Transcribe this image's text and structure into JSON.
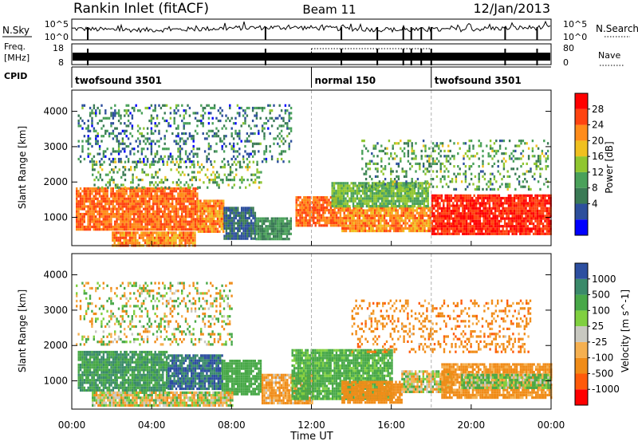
{
  "header": {
    "station": "Rankin Inlet (fitACF)",
    "beam": "Beam 11",
    "date": "12/Jan/2013"
  },
  "summary": {
    "nsky_label": "N.Sky",
    "nsearch_label": "N.Search",
    "freq_label_1": "Freq.",
    "freq_label_2": "[MHz]",
    "nave_label": "Nave",
    "cpid_label": "CPID",
    "noise_ticks_left": [
      "10^5",
      "10^0"
    ],
    "noise_ticks_right": [
      "10^5",
      "10^0"
    ],
    "freq_ticks": [
      "18",
      "8"
    ],
    "nave_ticks": [
      "80",
      "0"
    ],
    "cpid_segments": [
      {
        "label": "twofsound 3501",
        "start_hour": 0,
        "end_hour": 12
      },
      {
        "label": "normal 150",
        "start_hour": 12,
        "end_hour": 18
      },
      {
        "label": "twofsound 3501",
        "start_hour": 18,
        "end_hour": 24
      }
    ]
  },
  "chart_data": [
    {
      "type": "heatmap",
      "quantity": "Power",
      "ylabel": "Slant Range [km]",
      "colorbar_label": "Power [dB]",
      "xlim": [
        0,
        24
      ],
      "ylim": [
        200,
        4600
      ],
      "yticks": [
        1000,
        2000,
        3000,
        4000
      ],
      "colorbar_ticks": [
        "28",
        "24",
        "20",
        "16",
        "12",
        "8",
        "4"
      ],
      "colorscale": [
        "#0000ff",
        "#2d4f9c",
        "#3a7a55",
        "#4aa15a",
        "#90c630",
        "#f0c020",
        "#ff8c1a",
        "#ff4410",
        "#ff0000"
      ],
      "regions": [
        {
          "x_start": 0.2,
          "x_end": 6.3,
          "range_start": 650,
          "range_end": 1850,
          "value": 26
        },
        {
          "x_start": 2.0,
          "x_end": 6.2,
          "range_start": 200,
          "range_end": 600,
          "value": 24
        },
        {
          "x_start": 6.3,
          "x_end": 7.6,
          "range_start": 600,
          "range_end": 1500,
          "value": 24
        },
        {
          "x_start": 7.6,
          "x_end": 9.2,
          "range_start": 400,
          "range_end": 1300,
          "value": 6
        },
        {
          "x_start": 9.2,
          "x_end": 11.0,
          "range_start": 400,
          "range_end": 1000,
          "value": 10
        },
        {
          "x_start": 11.2,
          "x_end": 13.5,
          "range_start": 800,
          "range_end": 1600,
          "value": 26
        },
        {
          "x_start": 13.5,
          "x_end": 18.0,
          "range_start": 600,
          "range_end": 1300,
          "value": 24
        },
        {
          "x_start": 13.0,
          "x_end": 17.8,
          "range_start": 1300,
          "range_end": 2000,
          "value": 14
        },
        {
          "x_start": 18.0,
          "x_end": 24.0,
          "range_start": 550,
          "range_end": 1650,
          "value": 30
        },
        {
          "x_start": 1.0,
          "x_end": 9.5,
          "range_start": 1850,
          "range_end": 2600,
          "value": 13
        },
        {
          "x_start": 14.5,
          "x_end": 23.8,
          "range_start": 1800,
          "range_end": 3200,
          "value": 12
        },
        {
          "x_start": 0.3,
          "x_end": 11.0,
          "range_start": 2600,
          "range_end": 4200,
          "value": 8
        }
      ]
    },
    {
      "type": "heatmap",
      "quantity": "Velocity",
      "ylabel": "Slant Range [km]",
      "colorbar_label": "Velocity [m s^-1]",
      "xlabel": "Time UT",
      "xlim": [
        0,
        24
      ],
      "ylim": [
        200,
        4600
      ],
      "yticks": [
        1000,
        2000,
        3000,
        4000
      ],
      "xtick_labels": [
        "00:00",
        "04:00",
        "08:00",
        "12:00",
        "16:00",
        "20:00",
        "00:00"
      ],
      "xtick_hours": [
        0,
        4,
        8,
        12,
        16,
        20,
        24
      ],
      "colorbar_ticks": [
        "1000",
        "500",
        "100",
        "25",
        "-25",
        "-100",
        "-500",
        "-1000"
      ],
      "colorscale": [
        "#ff0000",
        "#ff5a0a",
        "#f08c18",
        "#f5b050",
        "#c8c8c0",
        "#80d040",
        "#48a848",
        "#3a8a6a",
        "#2d4fa0"
      ],
      "regions": [
        {
          "x_start": 0.3,
          "x_end": 4.8,
          "range_start": 750,
          "range_end": 1850,
          "value": 500
        },
        {
          "x_start": 4.8,
          "x_end": 7.5,
          "range_start": 800,
          "range_end": 1750,
          "value": 1000
        },
        {
          "x_start": 7.5,
          "x_end": 9.5,
          "range_start": 600,
          "range_end": 1600,
          "value": 300
        },
        {
          "x_start": 1.0,
          "x_end": 8.0,
          "range_start": 300,
          "range_end": 700,
          "value": 0
        },
        {
          "x_start": 9.5,
          "x_end": 12.0,
          "range_start": 400,
          "range_end": 1200,
          "value": -150
        },
        {
          "x_start": 11.0,
          "x_end": 16.0,
          "range_start": 500,
          "range_end": 1900,
          "value": 200
        },
        {
          "x_start": 13.5,
          "x_end": 16.5,
          "range_start": 400,
          "range_end": 1000,
          "value": -300
        },
        {
          "x_start": 16.5,
          "x_end": 19.0,
          "range_start": 700,
          "range_end": 1300,
          "value": 0
        },
        {
          "x_start": 18.5,
          "x_end": 24.0,
          "range_start": 500,
          "range_end": 1500,
          "value": -200
        },
        {
          "x_start": 19.5,
          "x_end": 24.0,
          "range_start": 800,
          "range_end": 1200,
          "value": 100
        },
        {
          "x_start": 14.0,
          "x_end": 23.0,
          "range_start": 1800,
          "range_end": 3300,
          "value": -300
        },
        {
          "x_start": 0.2,
          "x_end": 8.0,
          "range_start": 2000,
          "range_end": 3800,
          "value": 0
        }
      ]
    }
  ]
}
